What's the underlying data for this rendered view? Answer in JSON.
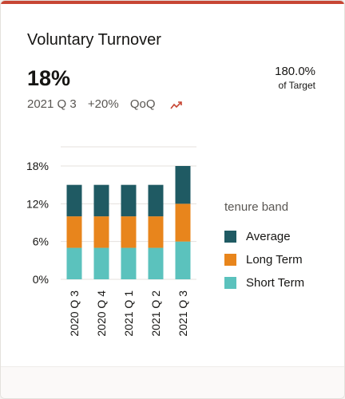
{
  "card": {
    "title": "Voluntary Turnover",
    "kpi_value": "18%",
    "period": "2021 Q 3",
    "change": "+20%",
    "change_basis": "QoQ",
    "trend_icon": "trend-up-icon",
    "target_pct": "180.0%",
    "target_label": "of Target"
  },
  "colors": {
    "accent": "#c74634",
    "average": "#1f5a63",
    "long_term": "#e8851c",
    "short_term": "#5bc2bd"
  },
  "chart_data": {
    "type": "bar",
    "stacked": true,
    "categories": [
      "2020 Q 3",
      "2020 Q 4",
      "2021 Q 1",
      "2021 Q 2",
      "2021 Q 3"
    ],
    "series": [
      {
        "name": "Short Term",
        "color": "#5bc2bd",
        "values": [
          5,
          5,
          5,
          5,
          6
        ]
      },
      {
        "name": "Long Term",
        "color": "#e8851c",
        "values": [
          5,
          5,
          5,
          5,
          6
        ]
      },
      {
        "name": "Average",
        "color": "#1f5a63",
        "values": [
          5,
          5,
          5,
          5,
          6
        ]
      }
    ],
    "yticks": [
      "0%",
      "6%",
      "12%",
      "18%"
    ],
    "ytick_values": [
      0,
      6,
      12,
      18
    ],
    "ylim": [
      0,
      18
    ],
    "legend_title": "tenure band",
    "legend_order": [
      "Average",
      "Long Term",
      "Short Term"
    ],
    "legend_placement": "right",
    "grid": true
  }
}
